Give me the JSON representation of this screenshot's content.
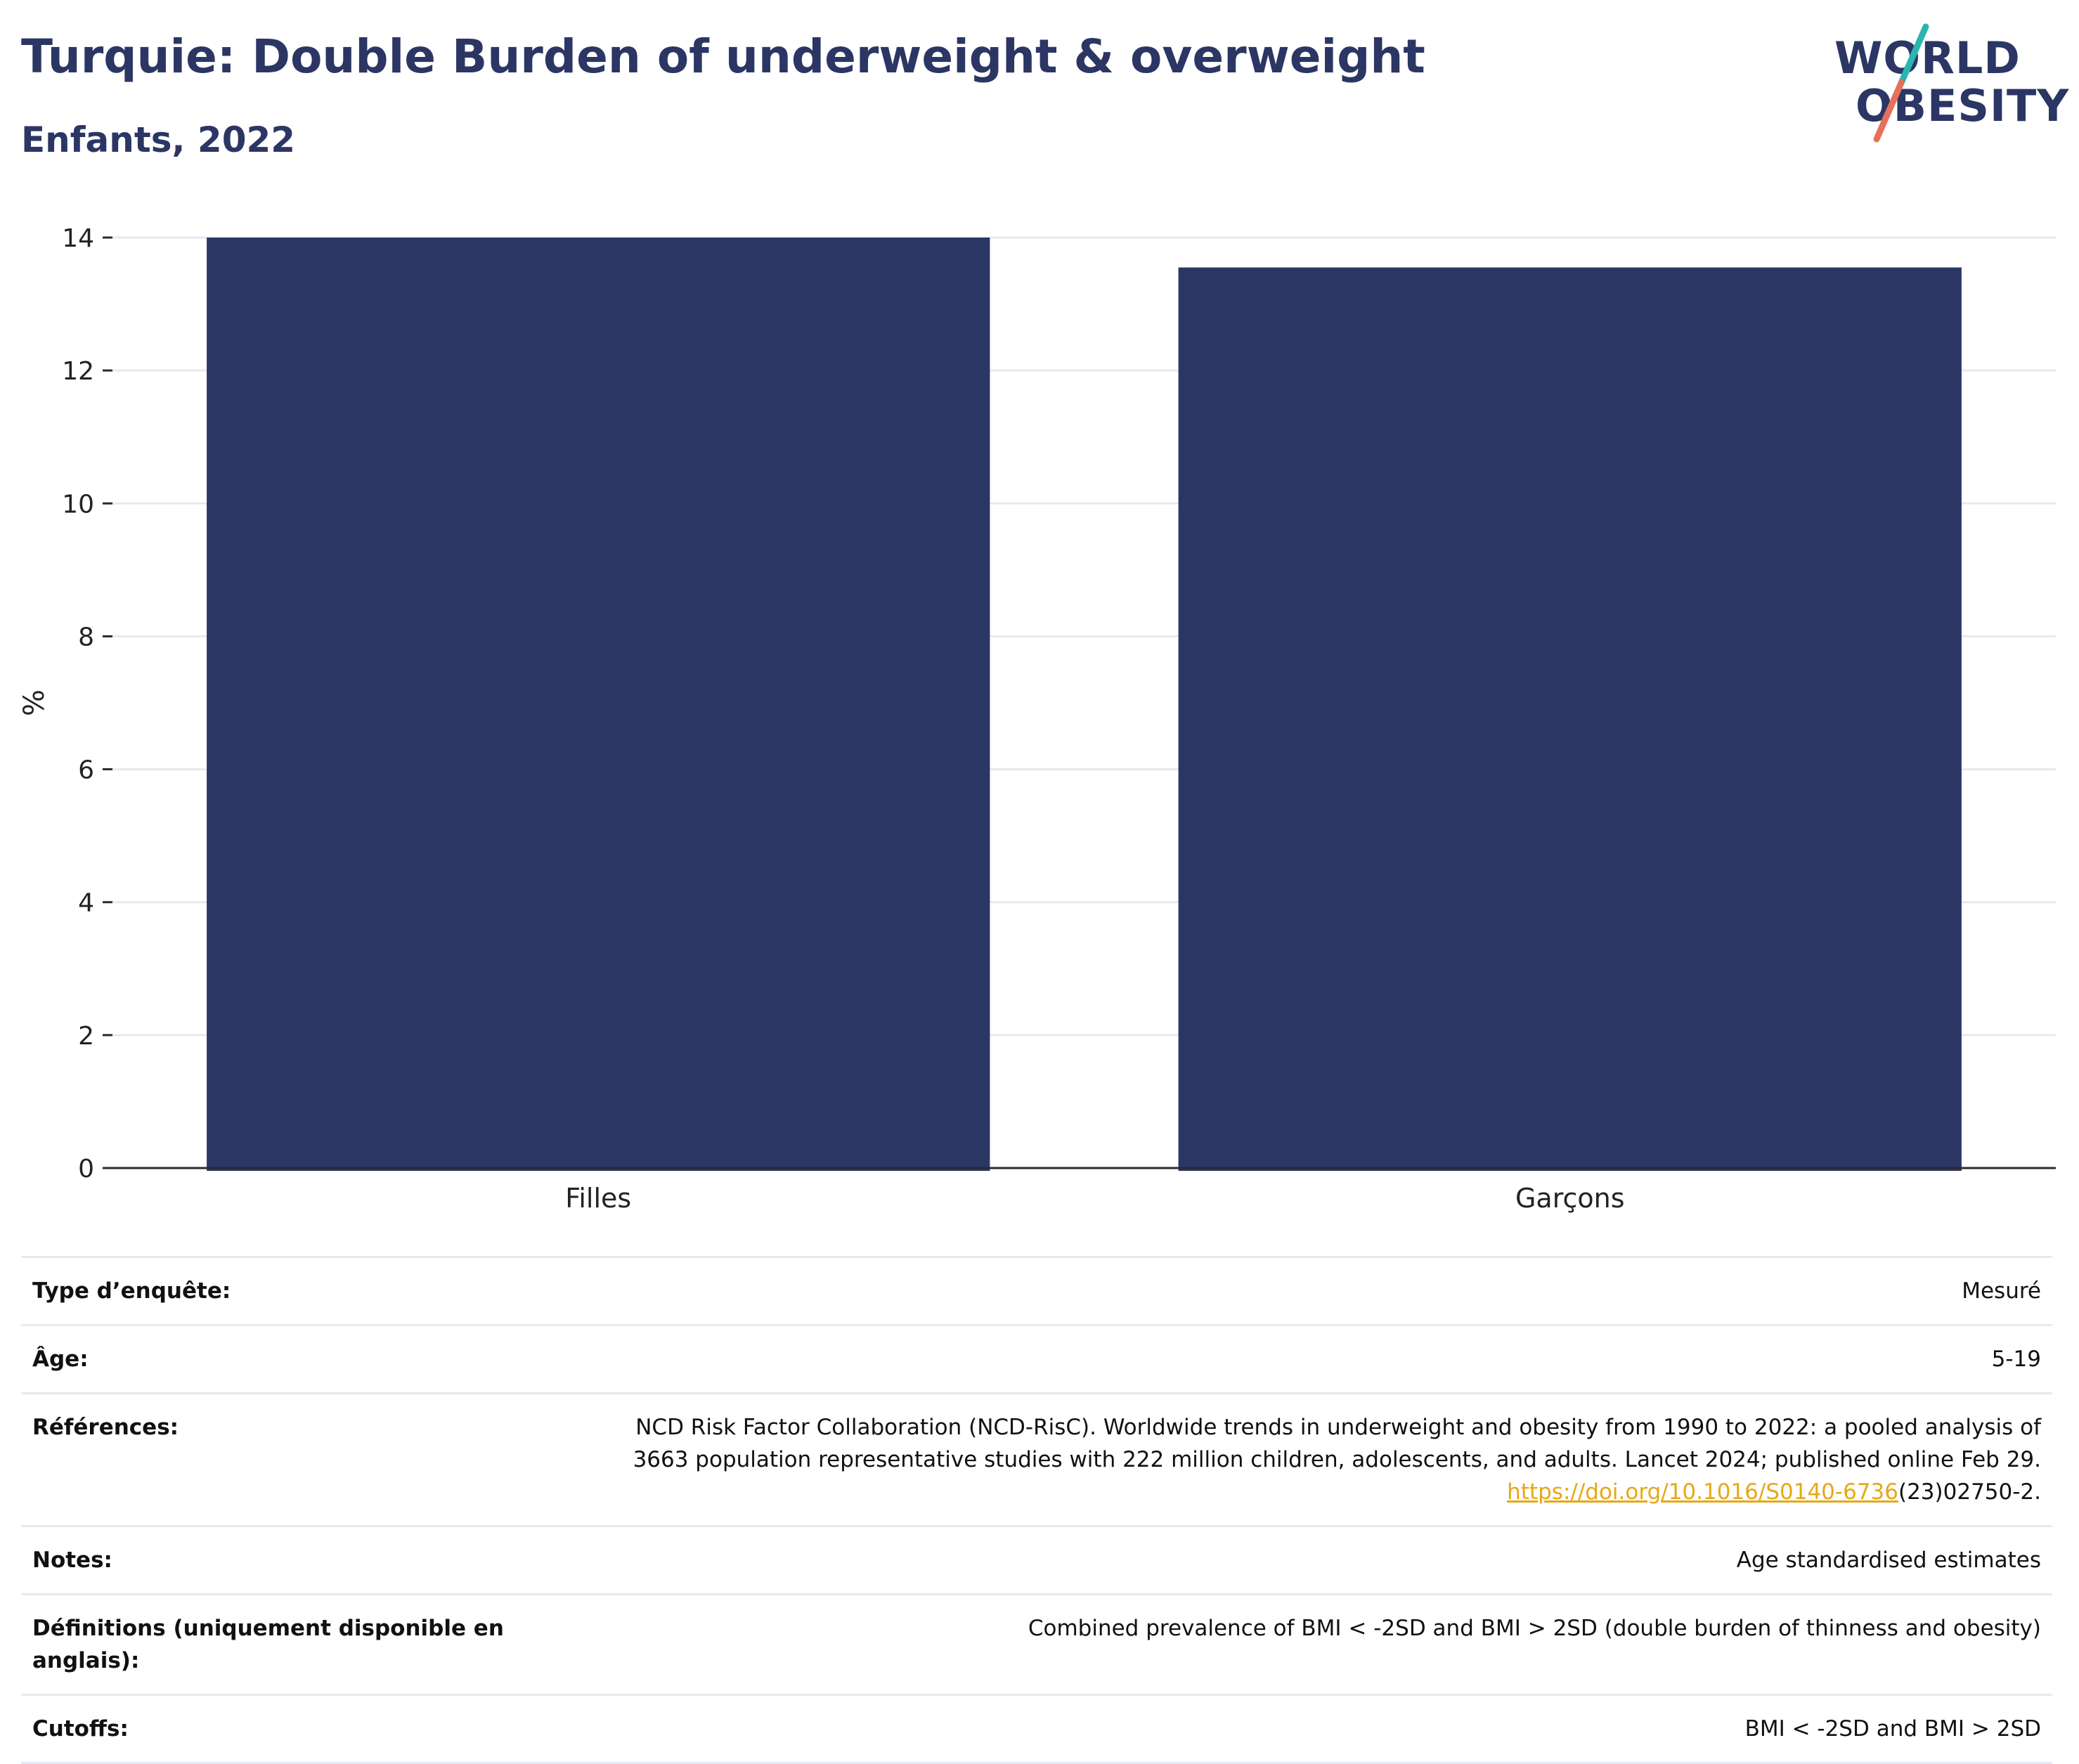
{
  "header": {
    "title": "Turquie: Double Burden of underweight & overweight",
    "subtitle": "Enfants, 2022"
  },
  "logo": {
    "line1": "WORLD",
    "line2": "OBESITY",
    "colors": {
      "text": "#2b3664",
      "slash_top": "#2bb5b0",
      "slash_bottom": "#e8705a"
    }
  },
  "chart_data": {
    "type": "bar",
    "categories": [
      "Filles",
      "Garçons"
    ],
    "values": [
      14.0,
      13.55
    ],
    "title": "",
    "xlabel": "",
    "ylabel": "%",
    "ylim": [
      0,
      14
    ],
    "yticks": [
      0,
      2,
      4,
      6,
      8,
      10,
      12,
      14
    ],
    "grid": true,
    "colors": {
      "bar": "#2b3664",
      "grid": "#e6e9f1",
      "axis": "#2b2b2b"
    }
  },
  "info": {
    "survey_type": {
      "label": "Type d’enquête:",
      "value": "Mesuré"
    },
    "age": {
      "label": "Âge:",
      "value": "5-19"
    },
    "references": {
      "label": "Références:",
      "line1": "NCD Risk Factor Collaboration (NCD-RisC). Worldwide trends in underweight and obesity from 1990 to 2022: a pooled analysis of",
      "line2": "3663 population representative studies with 222 million children, adolescents, and adults. Lancet 2024; published online Feb 29.",
      "link": "https://doi.org/10.1016/S0140-6736",
      "link_suffix": "(23)02750-2."
    },
    "notes": {
      "label": "Notes:",
      "value": "Age standardised estimates"
    },
    "definitions": {
      "label": "Définitions (uniquement disponible en anglais):",
      "value": "Combined prevalence of BMI < -2SD and BMI > 2SD (double burden of thinness and obesity)"
    },
    "cutoffs": {
      "label": "Cutoffs:",
      "value": "BMI < -2SD and BMI > 2SD"
    }
  }
}
